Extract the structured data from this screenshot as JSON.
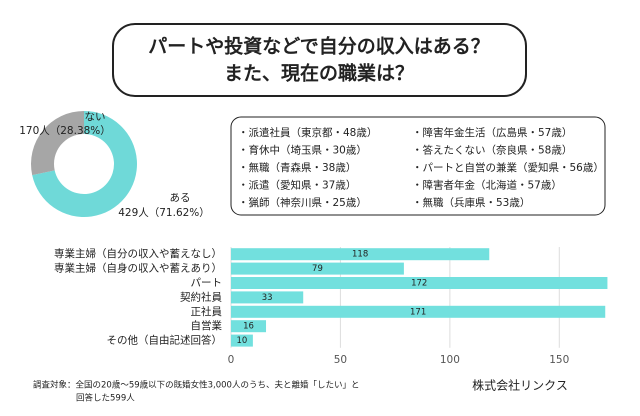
{
  "header": {
    "title_lines": [
      "パートや投資などで自分の収入はある？",
      "また、現在の職業は？"
    ]
  },
  "chart_data": [
    {
      "type": "pie",
      "categories": [
        "ない",
        "ある"
      ],
      "values": [
        28.38,
        71.62
      ],
      "value_labels": [
        "170人（28.38%）",
        "429人（71.62%）"
      ],
      "colors": [
        "#a6a6a6",
        "#6fd9d8"
      ],
      "donut": true
    },
    {
      "type": "hbar",
      "categories": [
        "専業主婦（自分の収入や蓄えなし）",
        "専業主婦（自身の収入や蓄えあり）",
        "パート",
        "契約社員",
        "正社員",
        "自営業",
        "その他（自由記述回答）"
      ],
      "values": [
        118,
        79,
        172,
        33,
        171,
        16,
        10
      ],
      "color": "#72e0de",
      "xlim": [
        0,
        175
      ],
      "xticks": [
        0,
        50,
        100,
        150
      ],
      "grid": true
    }
  ],
  "info": {
    "items": [
      "・派遣社員（東京都・48歳）",
      "・育休中（埼玉県・30歳）",
      "・無職（青森県・38歳）",
      "・派遣（愛知県・37歳）",
      "・猟師（神奈川県・25歳）",
      "・障害年金生活（広島県・57歳）",
      "・答えたくない（奈良県・58歳）",
      "・パートと自営の兼業（愛知県・56歳）",
      "・障害者年金（北海道・57歳）",
      "・無職（兵庫県・53歳）"
    ]
  },
  "footnote": {
    "lines": [
      "調査対象：全国の20歳〜59歳以下の既婚女性3,000人のうち、夫と離婚「したい」と",
      "回答した599人"
    ]
  },
  "source": "株式会社リンクス"
}
